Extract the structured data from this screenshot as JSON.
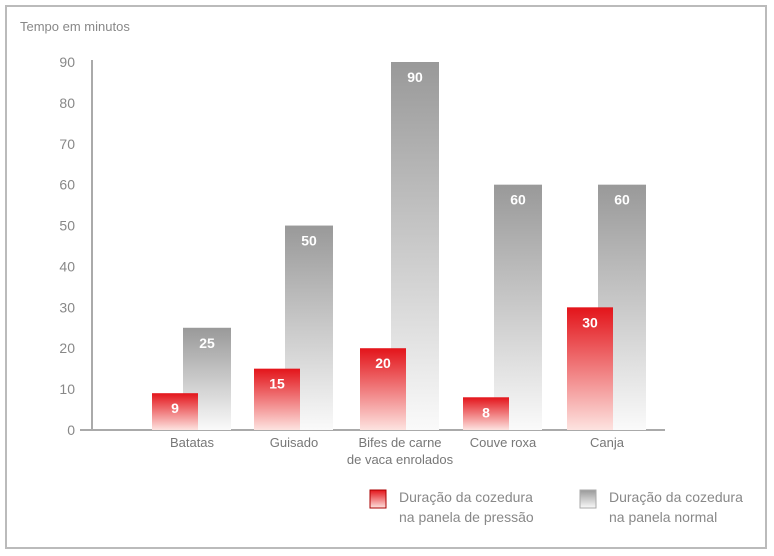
{
  "chart_data": {
    "type": "bar",
    "title": "",
    "ylabel": "Tempo em minutos",
    "xlabel": "",
    "ylim": [
      0,
      90
    ],
    "yticks": [
      0,
      10,
      20,
      30,
      40,
      50,
      60,
      70,
      80,
      90
    ],
    "categories": [
      [
        "Batatas"
      ],
      [
        "Guisado"
      ],
      [
        "Bifes de carne",
        "de vaca enrolados"
      ],
      [
        "Couve roxa"
      ],
      [
        "Canja"
      ]
    ],
    "series": [
      {
        "name": "Duração da cozedura na panela de pressão",
        "legend_lines": [
          "Duração da cozedura",
          "na panela de pressão"
        ],
        "color": "#e8141a",
        "values": [
          9,
          15,
          20,
          8,
          30
        ]
      },
      {
        "name": "Duração da cozedura na panela normal",
        "legend_lines": [
          "Duração da cozedura",
          "na panela normal"
        ],
        "color": "#9a9a9a",
        "values": [
          25,
          50,
          90,
          60,
          60
        ]
      }
    ],
    "grid": false,
    "legend_position": "bottom-right"
  }
}
